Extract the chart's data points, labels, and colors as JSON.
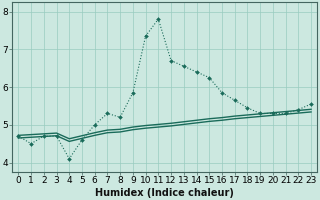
{
  "xlabel": "Humidex (Indice chaleur)",
  "ylabel": "",
  "background_color": "#cce8e0",
  "grid_color": "#99ccc0",
  "line_color": "#1a6b5a",
  "x_data": [
    0,
    1,
    2,
    3,
    4,
    5,
    6,
    7,
    8,
    9,
    10,
    11,
    12,
    13,
    14,
    15,
    16,
    17,
    18,
    19,
    20,
    21,
    22,
    23
  ],
  "y_data_main": [
    4.7,
    4.5,
    4.7,
    4.7,
    4.1,
    4.6,
    5.0,
    5.3,
    5.2,
    5.85,
    7.35,
    7.8,
    6.7,
    6.55,
    6.4,
    6.25,
    5.85,
    5.65,
    5.45,
    5.3,
    5.3,
    5.3,
    5.4,
    5.55
  ],
  "y_data_line1": [
    4.72,
    4.74,
    4.76,
    4.78,
    4.63,
    4.71,
    4.79,
    4.86,
    4.88,
    4.94,
    4.98,
    5.01,
    5.04,
    5.08,
    5.12,
    5.16,
    5.19,
    5.23,
    5.26,
    5.29,
    5.32,
    5.35,
    5.38,
    5.41
  ],
  "y_data_line2": [
    4.65,
    4.67,
    4.69,
    4.71,
    4.56,
    4.64,
    4.72,
    4.79,
    4.81,
    4.87,
    4.91,
    4.94,
    4.97,
    5.01,
    5.05,
    5.09,
    5.12,
    5.16,
    5.19,
    5.22,
    5.25,
    5.28,
    5.31,
    5.34
  ],
  "ylim": [
    3.75,
    8.25
  ],
  "xlim": [
    -0.5,
    23.5
  ],
  "yticks": [
    4,
    5,
    6,
    7,
    8
  ],
  "title_fontsize": 8,
  "label_fontsize": 7,
  "tick_fontsize": 6.5
}
